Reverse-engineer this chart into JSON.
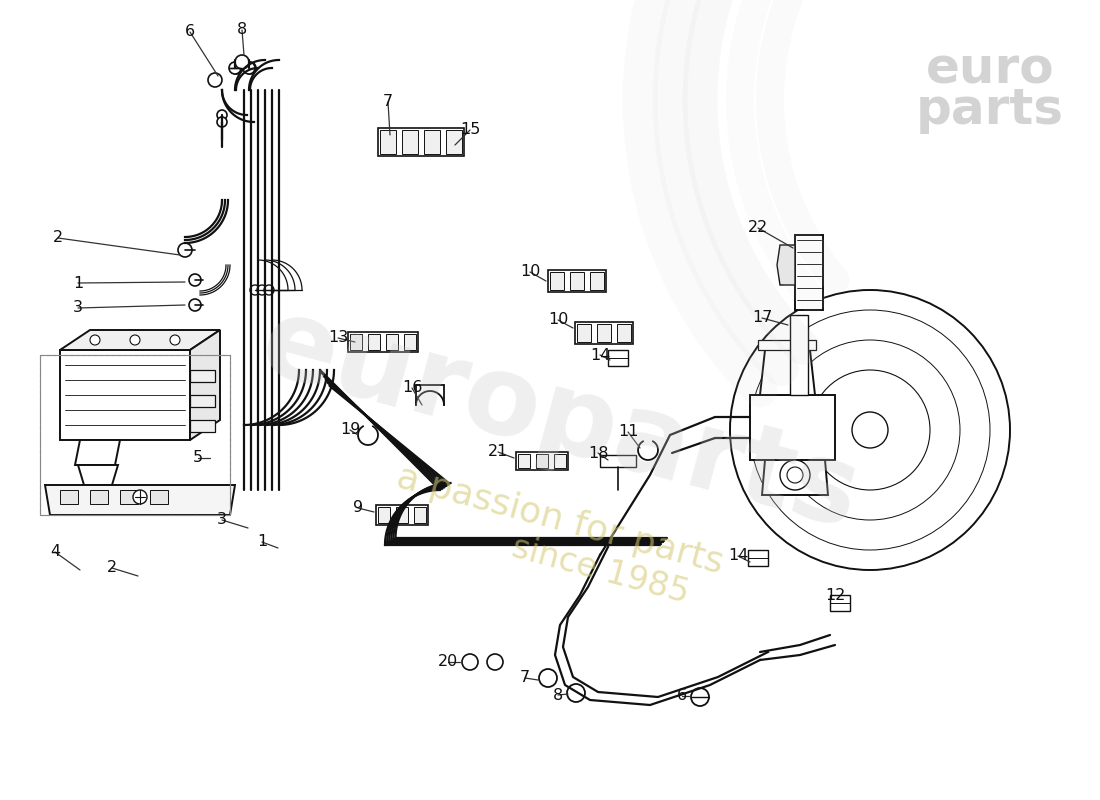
{
  "bg_color": "#ffffff",
  "line_color": "#111111",
  "lw_main": 1.4,
  "lw_tube": 1.6,
  "lw_thin": 0.9,
  "watermark_main": "europarts",
  "watermark_sub1": "a passion for parts",
  "watermark_sub2": "since 1985",
  "logo_line1": "euro",
  "logo_line2": "parts",
  "labels": [
    [
      "6",
      190,
      38
    ],
    [
      "8",
      245,
      38
    ],
    [
      "7",
      380,
      105
    ],
    [
      "15",
      430,
      148
    ],
    [
      "2",
      68,
      240
    ],
    [
      "1",
      90,
      290
    ],
    [
      "3",
      90,
      310
    ],
    [
      "13",
      355,
      340
    ],
    [
      "16",
      432,
      390
    ],
    [
      "19",
      368,
      432
    ],
    [
      "10",
      545,
      280
    ],
    [
      "10",
      575,
      335
    ],
    [
      "14",
      618,
      360
    ],
    [
      "22",
      740,
      228
    ],
    [
      "17",
      740,
      315
    ],
    [
      "11",
      645,
      435
    ],
    [
      "18",
      618,
      455
    ],
    [
      "14",
      755,
      560
    ],
    [
      "12",
      830,
      600
    ],
    [
      "21",
      518,
      460
    ],
    [
      "9",
      375,
      522
    ],
    [
      "5",
      205,
      460
    ],
    [
      "4",
      73,
      550
    ],
    [
      "2",
      130,
      570
    ],
    [
      "3",
      238,
      520
    ],
    [
      "1",
      280,
      540
    ],
    [
      "7",
      545,
      680
    ],
    [
      "8",
      575,
      695
    ],
    [
      "20",
      468,
      665
    ],
    [
      "6",
      700,
      697
    ]
  ]
}
